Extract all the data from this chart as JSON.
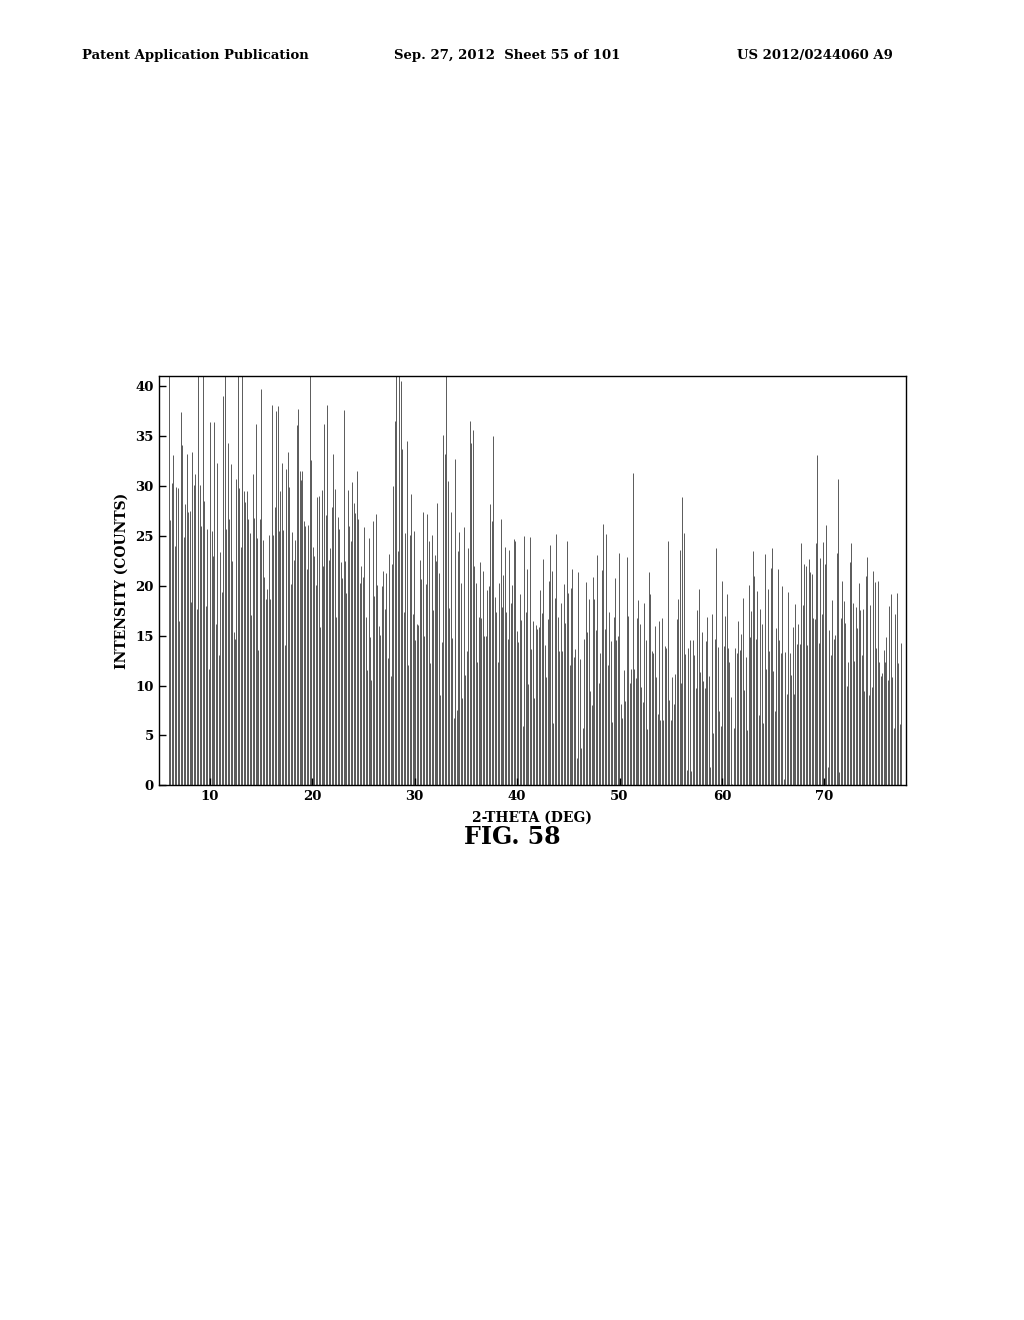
{
  "xlabel": "2-THETA (DEG)",
  "ylabel": "INTENSITY (COUNTS)",
  "fig_label": "FIG. 58",
  "header_left": "Patent Application Publication",
  "header_mid": "Sep. 27, 2012  Sheet 55 of 101",
  "header_right": "US 2012/0244060 A9",
  "xlim": [
    5,
    78
  ],
  "ylim": [
    0,
    41
  ],
  "xticks": [
    10,
    20,
    30,
    40,
    50,
    60,
    70
  ],
  "yticks": [
    0,
    5,
    10,
    15,
    20,
    25,
    30,
    35,
    40
  ],
  "line_color": "#000000",
  "background_color": "#ffffff",
  "seed": 7
}
